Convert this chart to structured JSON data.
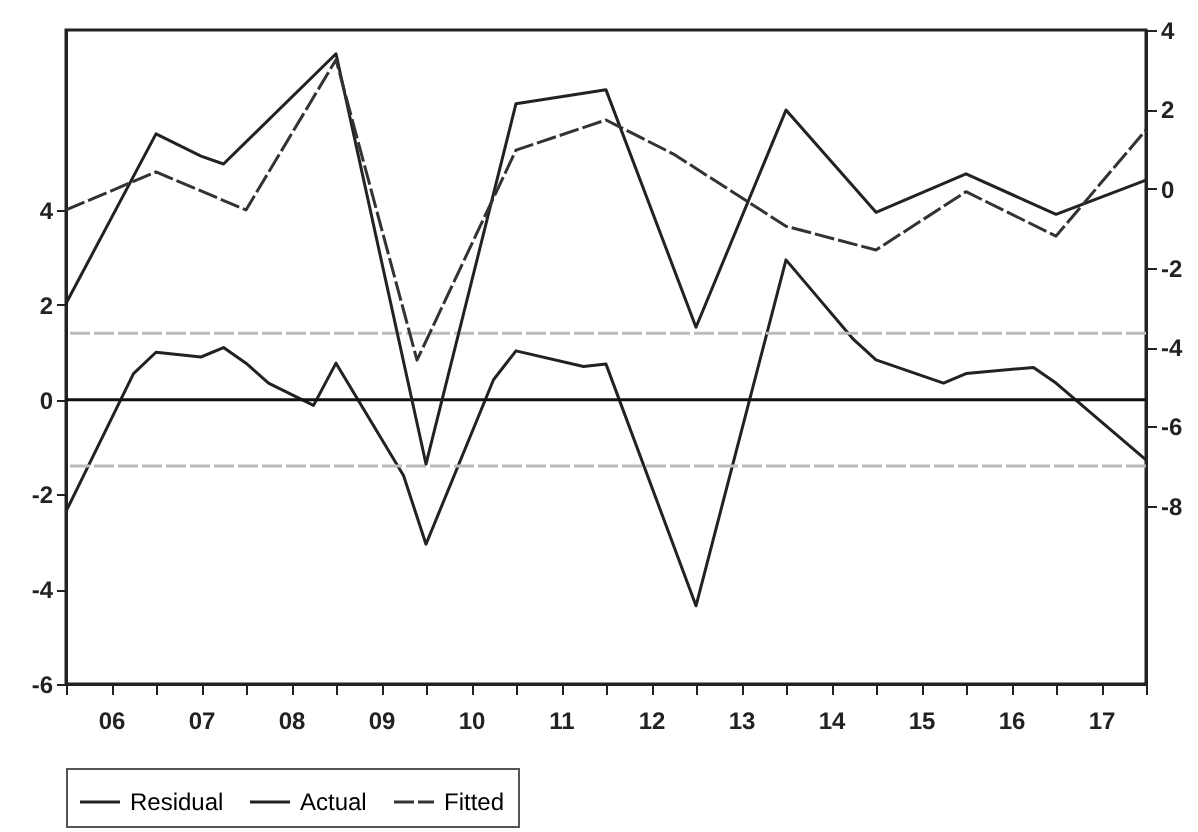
{
  "chart_data": {
    "type": "line",
    "xlim": [
      2005.5,
      2017.5
    ],
    "xticks": [
      {
        "value": 2005.5,
        "label": null
      },
      {
        "value": 2006,
        "label": "06"
      },
      {
        "value": 2006.5,
        "label": null
      },
      {
        "value": 2007,
        "label": "07"
      },
      {
        "value": 2007.5,
        "label": null
      },
      {
        "value": 2008,
        "label": "08"
      },
      {
        "value": 2008.5,
        "label": null
      },
      {
        "value": 2009,
        "label": "09"
      },
      {
        "value": 2009.5,
        "label": null
      },
      {
        "value": 2010,
        "label": "10"
      },
      {
        "value": 2010.5,
        "label": null
      },
      {
        "value": 2011,
        "label": "11"
      },
      {
        "value": 2011.5,
        "label": null
      },
      {
        "value": 2012,
        "label": "12"
      },
      {
        "value": 2012.5,
        "label": null
      },
      {
        "value": 2013,
        "label": "13"
      },
      {
        "value": 2013.5,
        "label": null
      },
      {
        "value": 2014,
        "label": "14"
      },
      {
        "value": 2014.5,
        "label": null
      },
      {
        "value": 2015,
        "label": "15"
      },
      {
        "value": 2015.5,
        "label": null
      },
      {
        "value": 2016,
        "label": "16"
      },
      {
        "value": 2016.5,
        "label": null
      },
      {
        "value": 2017,
        "label": "17"
      },
      {
        "value": 2017.5,
        "label": null
      }
    ],
    "ylim": [
      -6,
      7.8
    ],
    "yticks": [
      -6,
      -4,
      -2,
      0,
      2,
      4
    ],
    "y2lim": [
      -12.5,
      4
    ],
    "y2ticks": [
      -8,
      -6,
      -4,
      -2,
      0,
      2,
      4
    ],
    "grid": false,
    "legend": "bottom",
    "marker": "none",
    "series": [
      {
        "name": "Residual",
        "color": "#222222",
        "line_style": "solid",
        "x": [
          2005.5,
          2006.25,
          2006.5,
          2007,
          2007.25,
          2007.5,
          2007.75,
          2008.25,
          2008.5,
          2009.25,
          2009.5,
          2010.25,
          2010.5,
          2011.25,
          2011.5,
          2012.5,
          2013.5,
          2014.25,
          2014.5,
          2015.25,
          2015.5,
          2016.25,
          2016.5,
          2017.5
        ],
        "values": [
          -2.36,
          0.55,
          1.0,
          0.9,
          1.1,
          0.77,
          0.35,
          -0.12,
          0.77,
          -1.6,
          -3.05,
          0.42,
          1.03,
          0.7,
          0.75,
          -4.35,
          2.95,
          1.27,
          0.84,
          0.35,
          0.55,
          0.68,
          0.35,
          -1.27
        ]
      },
      {
        "name": "Actual",
        "color": "#222222",
        "line_style": "solid",
        "axis": "y2",
        "x": [
          2005.5,
          2006.5,
          2007,
          2007.25,
          2008.5,
          2009.5,
          2010.5,
          2011.5,
          2012.5,
          2013.5,
          2014.5,
          2015.5,
          2016.5,
          2017.5
        ],
        "values": [
          -2.9,
          1.38,
          0.82,
          0.62,
          3.4,
          -6.95,
          2.14,
          2.49,
          -3.5,
          1.98,
          -0.6,
          0.37,
          -0.65,
          0.21
        ]
      },
      {
        "name": "Fitted",
        "color": "#333333",
        "line_style": "dashed",
        "axis": "y2",
        "x": [
          2005.5,
          2006.5,
          2007.5,
          2008.5,
          2009.4,
          2010.5,
          2011.5,
          2012.25,
          2013.5,
          2014.5,
          2015.5,
          2016.5,
          2017.5
        ],
        "values": [
          -0.54,
          0.42,
          -0.54,
          3.25,
          -4.33,
          0.97,
          1.73,
          0.87,
          -0.95,
          -1.55,
          -0.08,
          -1.2,
          1.48
        ]
      }
    ],
    "ref_lines": [
      {
        "axis": "y",
        "value": 0,
        "color": "#111111",
        "line_style": "solid"
      },
      {
        "axis": "y",
        "value": 1.4,
        "color": "#bbbbbb",
        "line_style": "dashed"
      },
      {
        "axis": "y",
        "value": -1.4,
        "color": "#bbbbbb",
        "line_style": "dashed"
      }
    ]
  }
}
